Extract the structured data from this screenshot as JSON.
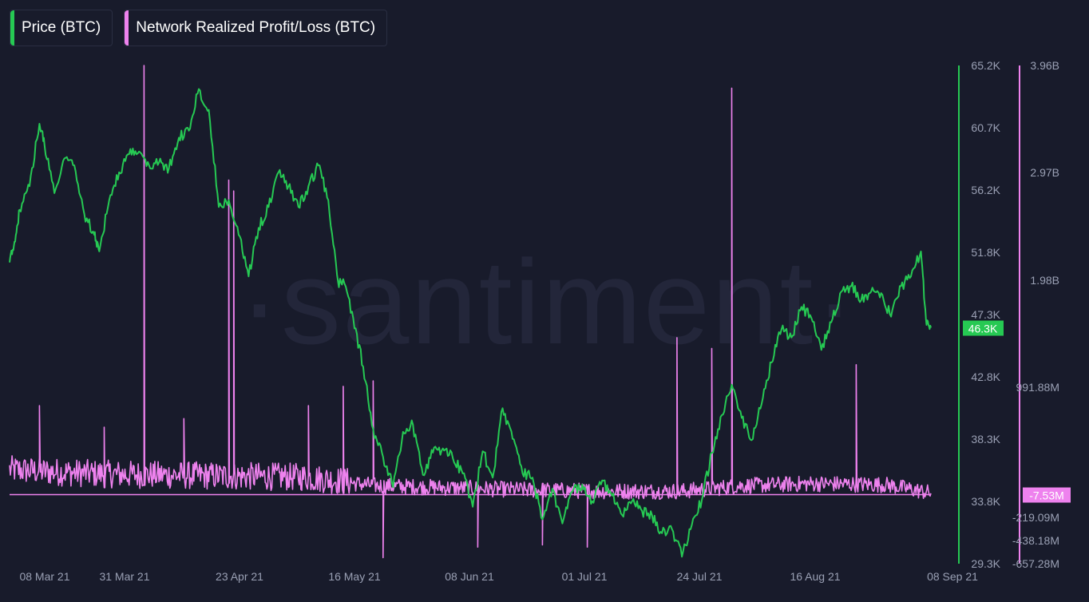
{
  "legend": {
    "price_label": "Price (BTC)",
    "nrpl_label": "Network Realized Profit/Loss (BTC)"
  },
  "colors": {
    "price": "#26c953",
    "nrpl": "#ee82ee",
    "background": "#181b2b",
    "tick_text": "#9aa0b4"
  },
  "watermark": "·santiment·",
  "chart_data": {
    "type": "line",
    "x_tick_labels": [
      "08 Mar 21",
      "31 Mar 21",
      "23 Apr 21",
      "16 May 21",
      "08 Jun 21",
      "01 Jul 21",
      "24 Jul 21",
      "16 Aug 21",
      "08 Sep 21"
    ],
    "x_range": [
      "2021-03-07",
      "2021-09-08"
    ],
    "left_axis": {
      "series": "Price (BTC)",
      "tick_labels": [
        "65.2K",
        "60.7K",
        "56.2K",
        "51.8K",
        "47.3K",
        "42.8K",
        "38.3K",
        "33.8K",
        "29.3K"
      ],
      "range": [
        29300,
        65200
      ],
      "current_value_label": "46.3K",
      "current_value": 46300
    },
    "right_axis": {
      "series": "Network Realized Profit/Loss (BTC)",
      "tick_labels": [
        "3.96B",
        "2.97B",
        "1.98B",
        "991.88M",
        "-219.09M",
        "-438.18M",
        "-657.28M"
      ],
      "tick_values": [
        3960000000,
        2970000000,
        1980000000,
        991880000,
        -219090000,
        -438180000,
        -657280000
      ],
      "range": [
        -657280000,
        3960000000
      ],
      "current_value_label": "-7.53M",
      "current_value": -7530000
    },
    "series": [
      {
        "name": "Price (BTC)",
        "axis": "left",
        "points": [
          [
            "2021-03-07",
            51000
          ],
          [
            "2021-03-08",
            52500
          ],
          [
            "2021-03-09",
            54800
          ],
          [
            "2021-03-11",
            56500
          ],
          [
            "2021-03-13",
            61000
          ],
          [
            "2021-03-14",
            59500
          ],
          [
            "2021-03-16",
            56000
          ],
          [
            "2021-03-18",
            58500
          ],
          [
            "2021-03-20",
            58000
          ],
          [
            "2021-03-22",
            54500
          ],
          [
            "2021-03-24",
            53000
          ],
          [
            "2021-03-25",
            51800
          ],
          [
            "2021-03-27",
            55500
          ],
          [
            "2021-03-29",
            57500
          ],
          [
            "2021-03-31",
            58800
          ],
          [
            "2021-04-02",
            59000
          ],
          [
            "2021-04-04",
            58000
          ],
          [
            "2021-04-06",
            58200
          ],
          [
            "2021-04-08",
            57800
          ],
          [
            "2021-04-10",
            60000
          ],
          [
            "2021-04-12",
            60500
          ],
          [
            "2021-04-14",
            63500
          ],
          [
            "2021-04-16",
            62000
          ],
          [
            "2021-04-18",
            55000
          ],
          [
            "2021-04-20",
            55500
          ],
          [
            "2021-04-22",
            53000
          ],
          [
            "2021-04-24",
            50000
          ],
          [
            "2021-04-26",
            53500
          ],
          [
            "2021-04-28",
            55000
          ],
          [
            "2021-04-30",
            57500
          ],
          [
            "2021-05-02",
            56500
          ],
          [
            "2021-05-04",
            55000
          ],
          [
            "2021-05-06",
            56500
          ],
          [
            "2021-05-08",
            58000
          ],
          [
            "2021-05-10",
            55500
          ],
          [
            "2021-05-12",
            49500
          ],
          [
            "2021-05-13",
            49800
          ],
          [
            "2021-05-15",
            47000
          ],
          [
            "2021-05-17",
            43500
          ],
          [
            "2021-05-19",
            39000
          ],
          [
            "2021-05-21",
            37000
          ],
          [
            "2021-05-23",
            34800
          ],
          [
            "2021-05-25",
            38800
          ],
          [
            "2021-05-27",
            39300
          ],
          [
            "2021-05-29",
            35700
          ],
          [
            "2021-05-31",
            37300
          ],
          [
            "2021-06-02",
            37600
          ],
          [
            "2021-06-04",
            36900
          ],
          [
            "2021-06-06",
            35800
          ],
          [
            "2021-06-08",
            33400
          ],
          [
            "2021-06-10",
            37400
          ],
          [
            "2021-06-12",
            35500
          ],
          [
            "2021-06-14",
            40500
          ],
          [
            "2021-06-16",
            38300
          ],
          [
            "2021-06-18",
            35800
          ],
          [
            "2021-06-20",
            35500
          ],
          [
            "2021-06-22",
            32500
          ],
          [
            "2021-06-24",
            34700
          ],
          [
            "2021-06-26",
            32200
          ],
          [
            "2021-06-28",
            34500
          ],
          [
            "2021-06-30",
            35000
          ],
          [
            "2021-07-02",
            33800
          ],
          [
            "2021-07-04",
            35300
          ],
          [
            "2021-07-06",
            34200
          ],
          [
            "2021-07-08",
            32800
          ],
          [
            "2021-07-10",
            33800
          ],
          [
            "2021-07-12",
            33100
          ],
          [
            "2021-07-14",
            32800
          ],
          [
            "2021-07-16",
            31500
          ],
          [
            "2021-07-18",
            31800
          ],
          [
            "2021-07-20",
            29800
          ],
          [
            "2021-07-22",
            32100
          ],
          [
            "2021-07-24",
            33900
          ],
          [
            "2021-07-26",
            37300
          ],
          [
            "2021-07-28",
            40000
          ],
          [
            "2021-07-30",
            42200
          ],
          [
            "2021-08-01",
            39800
          ],
          [
            "2021-08-03",
            38200
          ],
          [
            "2021-08-05",
            40800
          ],
          [
            "2021-08-07",
            43800
          ],
          [
            "2021-08-09",
            46200
          ],
          [
            "2021-08-11",
            45600
          ],
          [
            "2021-08-13",
            47800
          ],
          [
            "2021-08-15",
            47000
          ],
          [
            "2021-08-17",
            44700
          ],
          [
            "2021-08-19",
            46700
          ],
          [
            "2021-08-21",
            48900
          ],
          [
            "2021-08-23",
            49300
          ],
          [
            "2021-08-25",
            48300
          ],
          [
            "2021-08-27",
            48900
          ],
          [
            "2021-08-29",
            48800
          ],
          [
            "2021-08-31",
            47100
          ],
          [
            "2021-09-02",
            49300
          ],
          [
            "2021-09-04",
            50000
          ],
          [
            "2021-09-06",
            51800
          ],
          [
            "2021-09-07",
            46900
          ],
          [
            "2021-09-08",
            46300
          ]
        ]
      },
      {
        "name": "Network Realized Profit/Loss (BTC)",
        "axis": "right",
        "baseline_points": [
          [
            "2021-03-07",
            200000000
          ],
          [
            "2021-03-15",
            180000000
          ],
          [
            "2021-03-25",
            160000000
          ],
          [
            "2021-04-05",
            150000000
          ],
          [
            "2021-04-20",
            140000000
          ],
          [
            "2021-05-05",
            130000000
          ],
          [
            "2021-05-20",
            60000000
          ],
          [
            "2021-06-05",
            40000000
          ],
          [
            "2021-06-20",
            20000000
          ],
          [
            "2021-07-05",
            10000000
          ],
          [
            "2021-07-20",
            10000000
          ],
          [
            "2021-08-01",
            60000000
          ],
          [
            "2021-08-15",
            80000000
          ],
          [
            "2021-08-30",
            70000000
          ],
          [
            "2021-09-08",
            -7530000
          ]
        ],
        "spikes": [
          [
            "2021-03-13",
            820000000
          ],
          [
            "2021-03-26",
            620000000
          ],
          [
            "2021-04-03",
            3960000000
          ],
          [
            "2021-04-11",
            700000000
          ],
          [
            "2021-04-20",
            2900000000
          ],
          [
            "2021-04-21",
            2800000000
          ],
          [
            "2021-05-06",
            820000000
          ],
          [
            "2021-05-13",
            1000000000
          ],
          [
            "2021-05-19",
            1050000000
          ],
          [
            "2021-05-21",
            -600000000
          ],
          [
            "2021-06-09",
            -500000000
          ],
          [
            "2021-06-22",
            -480000000
          ],
          [
            "2021-07-01",
            -500000000
          ],
          [
            "2021-07-19",
            1450000000
          ],
          [
            "2021-07-26",
            1350000000
          ],
          [
            "2021-07-30",
            3750000000
          ],
          [
            "2021-08-24",
            1200000000
          ]
        ]
      }
    ],
    "grid": false,
    "legend_position": "top-left"
  }
}
